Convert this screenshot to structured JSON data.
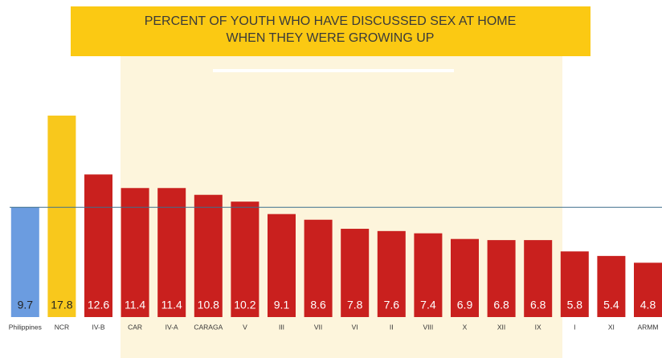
{
  "chart_data": {
    "type": "bar",
    "title": [
      "PERCENT OF YOUTH WHO HAVE DISCUSSED SEX AT HOME",
      "WHEN THEY WERE GROWING UP"
    ],
    "categories": [
      "Philippines",
      "NCR",
      "IV-B",
      "CAR",
      "IV-A",
      "CARAGA",
      "V",
      "III",
      "VII",
      "VI",
      "II",
      "VIII",
      "X",
      "XII",
      "IX",
      "I",
      "XI",
      "ARMM"
    ],
    "values": [
      9.7,
      17.8,
      12.6,
      11.4,
      11.4,
      10.8,
      10.2,
      9.1,
      8.6,
      7.8,
      7.6,
      7.4,
      6.9,
      6.8,
      6.8,
      5.8,
      5.4,
      4.8
    ],
    "colors": [
      "#6b9ce0",
      "#f8c81c",
      "#c9201e",
      "#c9201e",
      "#c9201e",
      "#c9201e",
      "#c9201e",
      "#c9201e",
      "#c9201e",
      "#c9201e",
      "#c9201e",
      "#c9201e",
      "#c9201e",
      "#c9201e",
      "#c9201e",
      "#c9201e",
      "#c9201e",
      "#c9201e"
    ],
    "label_colors": [
      "#222222",
      "#222222",
      "#ffffff",
      "#ffffff",
      "#ffffff",
      "#ffffff",
      "#ffffff",
      "#ffffff",
      "#ffffff",
      "#ffffff",
      "#ffffff",
      "#ffffff",
      "#ffffff",
      "#ffffff",
      "#ffffff",
      "#ffffff",
      "#ffffff",
      "#ffffff"
    ],
    "reference_line_color": "#3d6f8c"
  }
}
